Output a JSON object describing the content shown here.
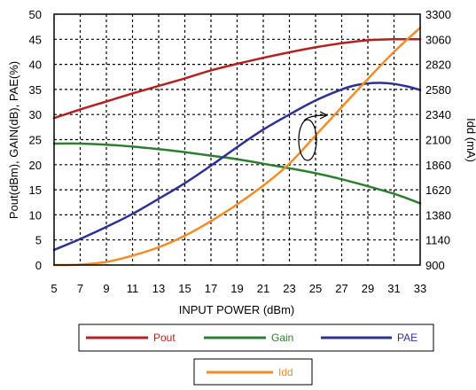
{
  "chart_data": {
    "type": "line",
    "xlabel": "INPUT POWER (dBm)",
    "ylabel": "Pout(dBm), GAIN(dB), PAE(%)",
    "y2label": "Idd (mA)",
    "xlim": [
      5,
      33
    ],
    "ylim": [
      0,
      50
    ],
    "y2lim": [
      900,
      3300
    ],
    "x_ticks": [
      "5",
      "7",
      "9",
      "11",
      "13",
      "15",
      "17",
      "19",
      "21",
      "23",
      "25",
      "27",
      "29",
      "31",
      "33"
    ],
    "y_ticks": [
      "0",
      "5",
      "10",
      "15",
      "20",
      "25",
      "30",
      "35",
      "40",
      "45",
      "50"
    ],
    "y2_ticks": [
      "900",
      "1140",
      "1380",
      "1620",
      "1860",
      "2100",
      "2340",
      "2580",
      "2820",
      "3060",
      "3300"
    ],
    "grid": true,
    "grid_style": "dotted",
    "series": [
      {
        "name": "Pout",
        "axis": "left",
        "color": "#b22222",
        "x": [
          5,
          7,
          9,
          11,
          13,
          15,
          17,
          19,
          21,
          23,
          25,
          27,
          29,
          31,
          33
        ],
        "y": [
          29.3,
          31.0,
          32.6,
          34.2,
          35.7,
          37.2,
          38.8,
          40.1,
          41.3,
          42.4,
          43.4,
          44.2,
          44.8,
          45.0,
          45.0
        ]
      },
      {
        "name": "Gain",
        "axis": "left",
        "color": "#2e7d32",
        "x": [
          5,
          7,
          9,
          11,
          13,
          15,
          17,
          19,
          21,
          23,
          25,
          27,
          29,
          31,
          33
        ],
        "y": [
          24.2,
          24.2,
          24.0,
          23.6,
          23.1,
          22.5,
          21.8,
          21.1,
          20.2,
          19.3,
          18.3,
          17.1,
          15.7,
          14.2,
          12.3
        ]
      },
      {
        "name": "PAE",
        "axis": "left",
        "color": "#2e3192",
        "x": [
          5,
          7,
          9,
          11,
          13,
          15,
          17,
          19,
          21,
          23,
          25,
          27,
          28,
          29,
          30,
          31,
          32,
          33
        ],
        "y": [
          3.0,
          5.2,
          7.6,
          10.2,
          13.2,
          16.3,
          19.8,
          23.5,
          27.0,
          30.0,
          32.8,
          35.0,
          35.8,
          36.2,
          36.3,
          36.1,
          35.6,
          34.9
        ]
      },
      {
        "name": "Idd",
        "axis": "right",
        "color": "#f28c28",
        "x": [
          5,
          7,
          9,
          11,
          13,
          15,
          17,
          19,
          21,
          23,
          25,
          27,
          29,
          31,
          33
        ],
        "y": [
          900,
          904,
          930,
          990,
          1070,
          1180,
          1320,
          1480,
          1660,
          1870,
          2140,
          2410,
          2680,
          2940,
          3170
        ]
      }
    ],
    "legend": {
      "placement": "bottom",
      "rows": [
        [
          "Pout",
          "Gain",
          "PAE"
        ],
        [
          "Idd"
        ]
      ]
    },
    "annotation": {
      "type": "ellipse-with-arrow",
      "points_to": "right-axis",
      "target_series": "Idd",
      "at_x": 24
    }
  }
}
